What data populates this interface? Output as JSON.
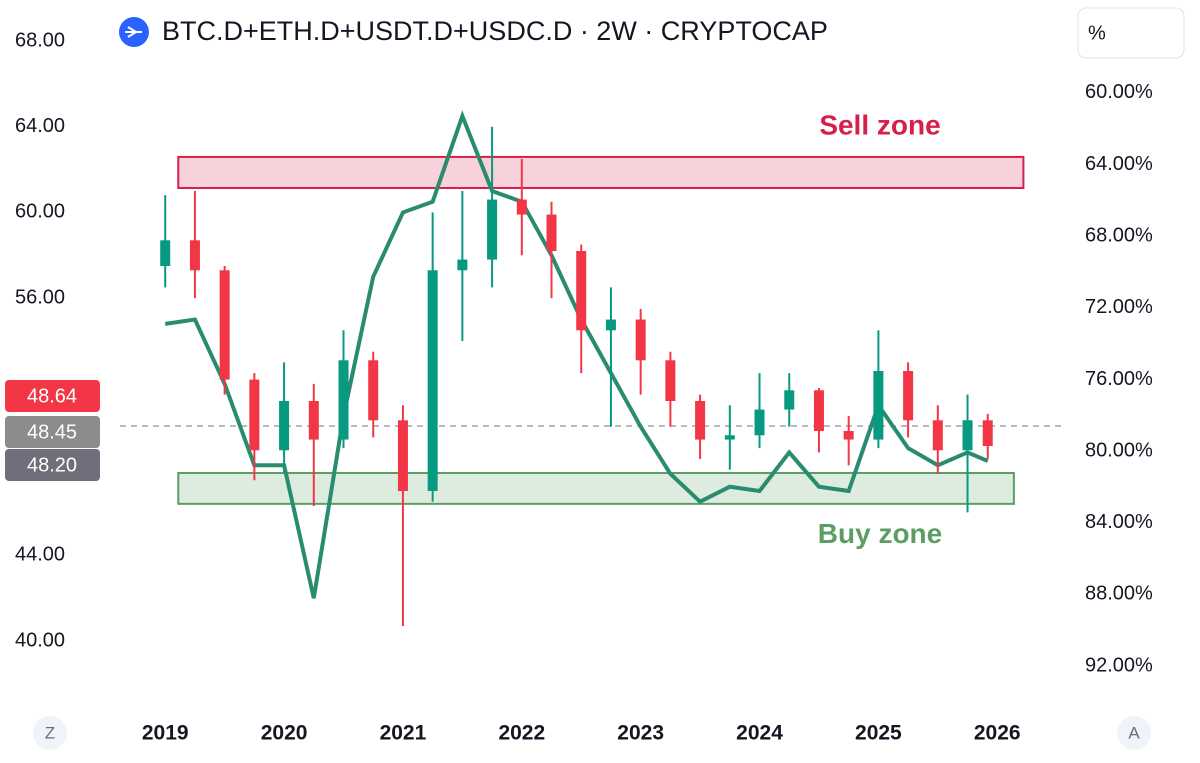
{
  "header": {
    "title": "BTC.D+ETH.D+USDT.D+USDC.D · 2W · CRYPTOCAP",
    "scale_button": "%",
    "left_button": "Z",
    "right_button": "A"
  },
  "price_labels": [
    "48.64",
    "48.45",
    "48.20"
  ],
  "chart_data": {
    "type": "candlestick",
    "x": [
      2019,
      2019.25,
      2019.5,
      2019.75,
      2020,
      2020.25,
      2020.5,
      2020.75,
      2021,
      2021.25,
      2021.5,
      2021.75,
      2022,
      2022.25,
      2022.5,
      2022.75,
      2023,
      2023.25,
      2023.5,
      2023.75,
      2024,
      2024.25,
      2024.5,
      2024.75,
      2025,
      2025.25,
      2025.5,
      2025.75,
      2025.92
    ],
    "open": [
      57.5,
      58.7,
      57.3,
      52.2,
      48.9,
      51.2,
      49.4,
      53.1,
      50.3,
      47.0,
      57.3,
      57.8,
      60.6,
      59.9,
      58.2,
      54.5,
      55.0,
      53.1,
      51.2,
      49.4,
      49.6,
      50.8,
      51.7,
      49.8,
      49.4,
      52.6,
      50.3,
      48.9,
      50.3
    ],
    "high": [
      60.8,
      61.0,
      57.5,
      52.5,
      53.0,
      52.0,
      54.5,
      53.5,
      51.0,
      60.0,
      61.0,
      64.0,
      62.5,
      60.5,
      58.5,
      56.5,
      55.5,
      53.5,
      51.5,
      51.0,
      52.5,
      52.5,
      51.8,
      50.5,
      54.5,
      53.0,
      51.0,
      51.5,
      50.6
    ],
    "low": [
      56.5,
      56.0,
      51.5,
      47.5,
      47.8,
      46.3,
      49.0,
      49.5,
      40.7,
      46.5,
      54.0,
      56.5,
      58.0,
      56.0,
      52.5,
      50.0,
      51.5,
      50.0,
      48.5,
      48.0,
      49.0,
      50.0,
      48.8,
      48.2,
      49.0,
      49.5,
      47.8,
      46.0,
      48.5
    ],
    "close": [
      58.7,
      57.3,
      52.2,
      48.9,
      51.2,
      49.4,
      53.1,
      50.3,
      47.0,
      57.3,
      57.8,
      60.6,
      59.9,
      58.2,
      54.5,
      55.0,
      53.1,
      51.2,
      49.4,
      49.6,
      50.8,
      51.7,
      49.8,
      49.4,
      52.6,
      50.3,
      48.9,
      50.3,
      49.1
    ],
    "up_color": "#089981",
    "down_color": "#f23645",
    "line": {
      "color": "#2a8c6e",
      "values": [
        54.8,
        55.0,
        52.0,
        48.2,
        48.2,
        42.0,
        50.5,
        57.0,
        60.0,
        60.5,
        64.5,
        61.0,
        60.5,
        58.0,
        55.0,
        52.5,
        50.0,
        47.8,
        46.5,
        47.2,
        47.0,
        48.8,
        47.2,
        47.0,
        51.0,
        49.0,
        48.2,
        48.8,
        48.4
      ]
    },
    "zones": [
      {
        "label": "Sell zone",
        "color": "#d6204b",
        "x": [
          2019.11,
          2026.22
        ],
        "y": [
          61.14,
          62.59
        ]
      },
      {
        "label": "Buy zone",
        "color": "#5a9e66",
        "x": [
          2019.11,
          2026.14
        ],
        "y": [
          46.4,
          47.84
        ]
      }
    ],
    "xlim": [
      2017.61,
      2026.57
    ],
    "xticks": [
      2019,
      2020,
      2021,
      2022,
      2023,
      2024,
      2025,
      2026
    ],
    "ylim": [
      40,
      68
    ],
    "yticks": [
      {
        "value": 40,
        "label": "40.00"
      },
      {
        "value": 44,
        "label": "44.00"
      },
      {
        "value": 56,
        "label": "56.00"
      },
      {
        "value": 60,
        "label": "60.00"
      },
      {
        "value": 64,
        "label": "64.00"
      },
      {
        "value": 68,
        "label": "68.00"
      }
    ],
    "y2lim": [
      57.1,
      90.6
    ],
    "y2_inverted": true,
    "y2ticks": [
      {
        "value": 60,
        "label": "60.00%"
      },
      {
        "value": 64,
        "label": "64.00%"
      },
      {
        "value": 68,
        "label": "68.00%"
      },
      {
        "value": 72,
        "label": "72.00%"
      },
      {
        "value": 76,
        "label": "76.00%"
      },
      {
        "value": 80,
        "label": "80.00%"
      },
      {
        "value": 84,
        "label": "84.00%"
      },
      {
        "value": 88,
        "label": "88.00%"
      },
      {
        "value": 92,
        "label": "92.00%"
      }
    ]
  }
}
